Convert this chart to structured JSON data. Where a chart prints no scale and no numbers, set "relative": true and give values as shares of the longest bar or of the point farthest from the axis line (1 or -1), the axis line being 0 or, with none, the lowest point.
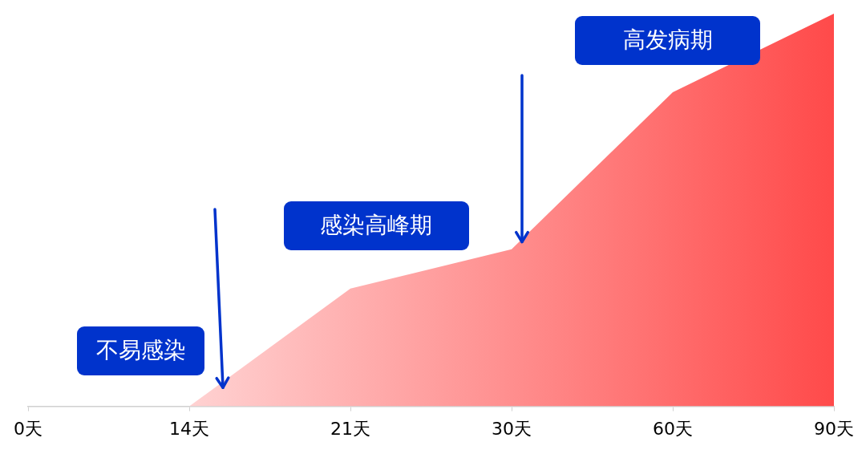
{
  "chart_data": {
    "type": "area",
    "relative": true,
    "categories": [
      "0天",
      "14天",
      "21天",
      "30天",
      "60天",
      "90天"
    ],
    "values": [
      null,
      0,
      0.3,
      0.4,
      0.8,
      1
    ],
    "color": "#ff4a4a",
    "annotations": [
      "不易感染",
      "感染高峰期",
      "高发病期"
    ]
  }
}
